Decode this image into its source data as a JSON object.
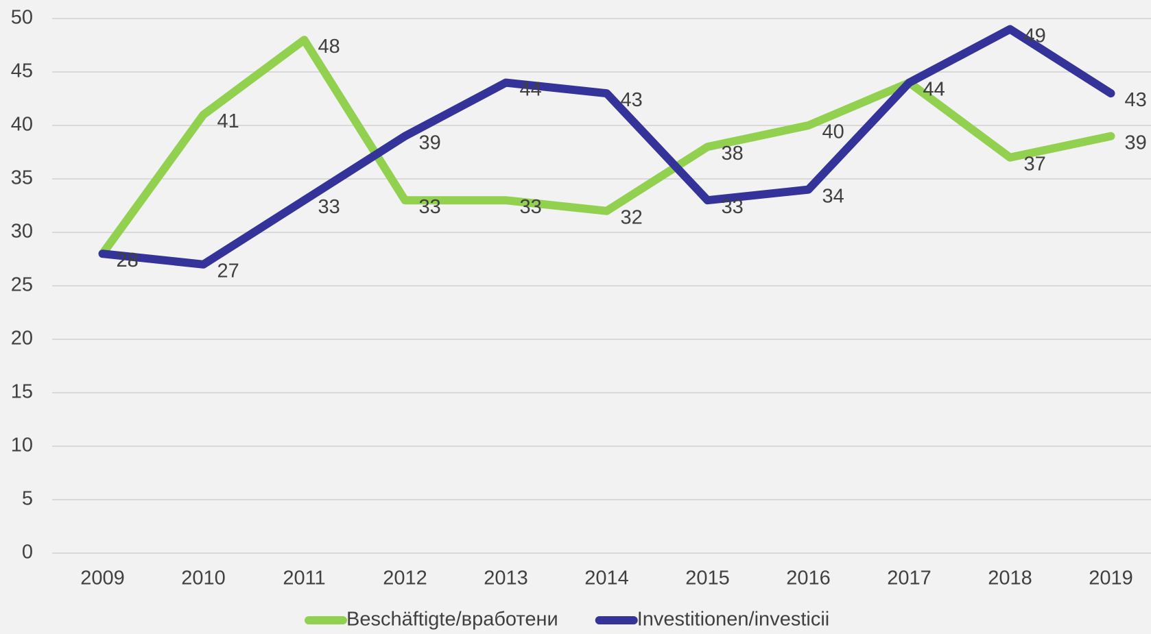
{
  "chart_data": {
    "type": "line",
    "categories": [
      "2009",
      "2010",
      "2011",
      "2012",
      "2013",
      "2014",
      "2015",
      "2016",
      "2017",
      "2018",
      "2019"
    ],
    "series": [
      {
        "name": "Beschäftigte/вработени",
        "color": "#92d050",
        "values": [
          28,
          41,
          48,
          33,
          33,
          32,
          38,
          40,
          44,
          37,
          39
        ]
      },
      {
        "name": "Investitionen/investicii",
        "color": "#333399",
        "values": [
          28,
          27,
          33,
          39,
          44,
          43,
          33,
          34,
          44,
          49,
          43
        ]
      }
    ],
    "ylim": [
      0,
      50
    ],
    "yticks": [
      0,
      5,
      10,
      15,
      20,
      25,
      30,
      35,
      40,
      45,
      50
    ],
    "grid": true,
    "legend": "bottom"
  }
}
